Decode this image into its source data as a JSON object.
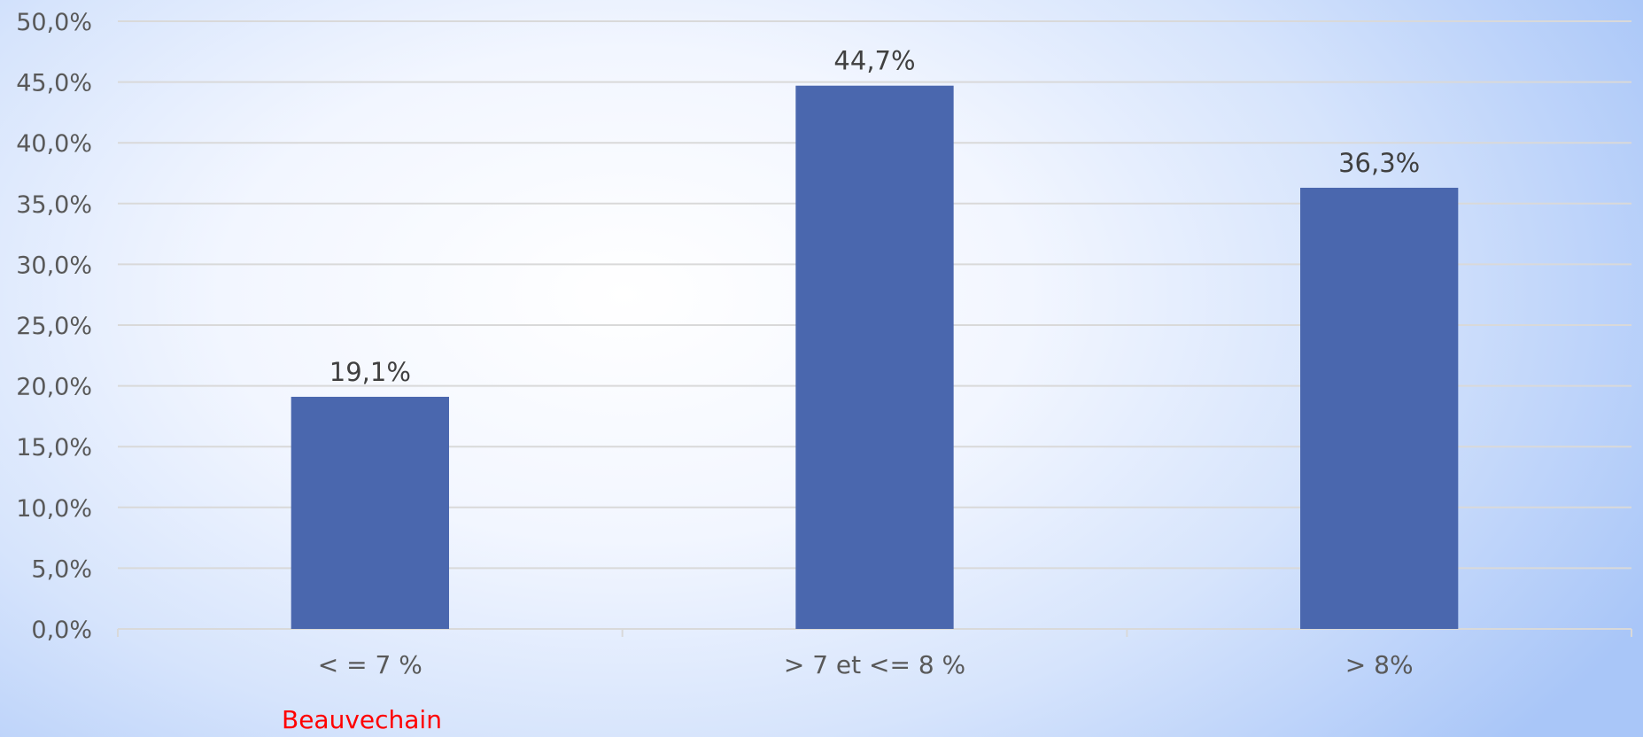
{
  "chart_data": {
    "type": "bar",
    "categories": [
      "< = 7 %",
      "> 7 et <= 8 %",
      "> 8%"
    ],
    "values": [
      19.1,
      44.7,
      36.3
    ],
    "data_labels": [
      "19,1%",
      "44,7%",
      "36,3%"
    ],
    "ylim": [
      0,
      50
    ],
    "yticks": [
      0,
      5,
      10,
      15,
      20,
      25,
      30,
      35,
      40,
      45,
      50
    ],
    "ytick_labels": [
      "0,0%",
      "5,0%",
      "10,0%",
      "15,0%",
      "20,0%",
      "25,0%",
      "30,0%",
      "35,0%",
      "40,0%",
      "45,0%",
      "50,0%"
    ],
    "bar_color": "#4a67ae",
    "grid": true,
    "legend": "none"
  },
  "annotation": "Beauvechain",
  "annotation_color": "#ff0000"
}
